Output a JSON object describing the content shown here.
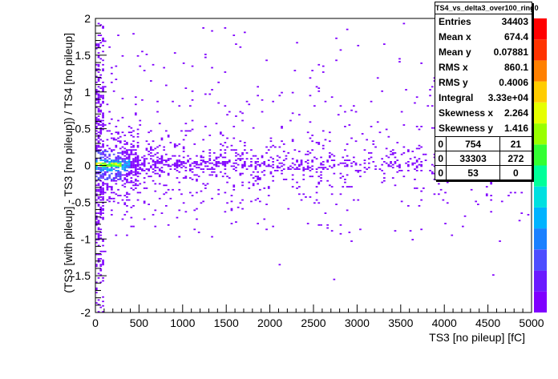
{
  "chart_data": {
    "type": "heatmap",
    "title": "",
    "xlabel": "TS3 [no pileup] [fC]",
    "ylabel": "(TS3 [with pileup] - TS3 [no pileup]) / TS4 [no pileup]",
    "xlim": [
      0,
      5000
    ],
    "ylim": [
      -2,
      2
    ],
    "x_ticks": [
      "0",
      "500",
      "1000",
      "1500",
      "2000",
      "2500",
      "3000",
      "3500",
      "4000",
      "4500",
      "5000"
    ],
    "y_ticks": [
      "-2",
      "-1.5",
      "-1",
      "-0.5",
      "0",
      "0.5",
      "1",
      "1.5",
      "2"
    ],
    "x_tick_values": [
      0,
      500,
      1000,
      1500,
      2000,
      2500,
      3000,
      3500,
      4000,
      4500,
      5000
    ],
    "y_tick_values": [
      -2,
      -1.5,
      -1,
      -0.5,
      0,
      0.5,
      1,
      1.5,
      2
    ],
    "palette_colors": [
      "#7f00ff",
      "#6a1aff",
      "#4d4dff",
      "#1a80ff",
      "#00b3ff",
      "#00e0e0",
      "#00ff99",
      "#33ff33",
      "#99ff00",
      "#e6ff00",
      "#ffcc00",
      "#ff8000",
      "#ff3300",
      "#ff0000"
    ],
    "grid": false,
    "stats_box": {
      "name": "TS4_vs_delta3_over100_ring0",
      "rows": [
        {
          "label": "Entries",
          "value": "34403"
        },
        {
          "label": "Mean x",
          "value": "674.4"
        },
        {
          "label": "Mean y",
          "value": "0.07881"
        },
        {
          "label": "RMS x",
          "value": "860.1"
        },
        {
          "label": "RMS y",
          "value": "0.4006"
        },
        {
          "label": "Integral",
          "value": "3.33e+04"
        },
        {
          "label": "Skewness x",
          "value": "2.264"
        },
        {
          "label": "Skewness y",
          "value": "1.416"
        }
      ],
      "overflow_grid": [
        [
          "0",
          "754",
          "21"
        ],
        [
          "0",
          "33303",
          "272"
        ],
        [
          "0",
          "53",
          "0"
        ]
      ]
    },
    "density_model": {
      "x_bin_width": 25,
      "y_bin_width": 0.02,
      "core_band_y": 0,
      "high_density_x_max": 500
    }
  }
}
